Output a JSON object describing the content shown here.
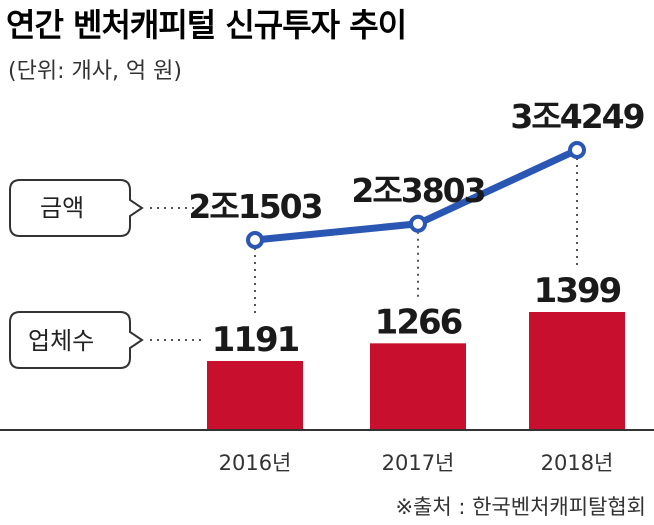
{
  "chart_data": {
    "type": "bar+line",
    "title": "연간 벤처캐피털 신규투자 추이",
    "subtitle": "(단위: 개사, 억 원)",
    "categories": [
      "2016년",
      "2017년",
      "2018년"
    ],
    "series": [
      {
        "name": "금액",
        "type": "line",
        "values": [
          21503,
          23803,
          34249
        ],
        "labels": [
          "2조1503",
          "2조3803",
          "3조4249"
        ],
        "color": "#2a56b4"
      },
      {
        "name": "업체수",
        "type": "bar",
        "values": [
          1191,
          1266,
          1399
        ],
        "labels": [
          "1191",
          "1266",
          "1399"
        ],
        "color": "#c8102e"
      }
    ],
    "source": "※출처 : 한국벤처캐피탈협회",
    "grid": false
  }
}
